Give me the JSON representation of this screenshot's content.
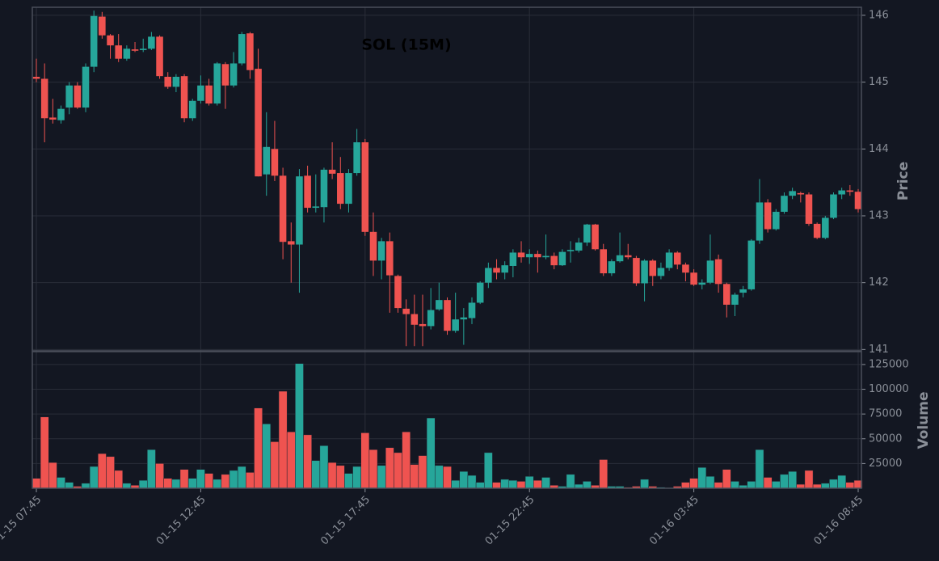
{
  "chart_data": {
    "type": "candlestick",
    "title": "SOL (15M)",
    "categories": [
      "01-15 07:45",
      null,
      null,
      null,
      null,
      null,
      null,
      null,
      null,
      null,
      null,
      null,
      null,
      null,
      null,
      null,
      null,
      null,
      null,
      null,
      "01-15 12:45",
      null,
      null,
      null,
      null,
      null,
      null,
      null,
      null,
      null,
      null,
      null,
      null,
      null,
      null,
      null,
      null,
      null,
      null,
      null,
      "01-15 17:45",
      null,
      null,
      null,
      null,
      null,
      null,
      null,
      null,
      null,
      null,
      null,
      null,
      null,
      null,
      null,
      null,
      null,
      null,
      null,
      "01-15 22:45",
      null,
      null,
      null,
      null,
      null,
      null,
      null,
      null,
      null,
      null,
      null,
      null,
      null,
      null,
      null,
      null,
      null,
      null,
      null,
      "01-16 03:45",
      null,
      null,
      null,
      null,
      null,
      null,
      null,
      null,
      null,
      null,
      null,
      null,
      null,
      null,
      null,
      null,
      null,
      null,
      null,
      "01-16 08:45"
    ],
    "open": [
      145.08,
      145.05,
      144.47,
      144.43,
      144.62,
      144.95,
      144.62,
      145.23,
      145.98,
      145.7,
      145.55,
      145.35,
      145.49,
      145.48,
      145.5,
      145.68,
      145.08,
      144.93,
      145.09,
      144.46,
      144.72,
      144.95,
      144.68,
      145.27,
      144.95,
      145.28,
      145.73,
      145.2,
      143.62,
      144.0,
      143.6,
      142.62,
      142.57,
      143.6,
      143.12,
      143.13,
      143.69,
      143.64,
      143.18,
      143.64,
      144.1,
      142.76,
      142.33,
      142.62,
      142.1,
      141.61,
      141.53,
      141.38,
      141.35,
      141.6,
      141.74,
      141.28,
      141.45,
      141.47,
      141.7,
      142.0,
      142.22,
      142.15,
      142.25,
      142.45,
      142.38,
      142.43,
      142.38,
      142.4,
      142.26,
      142.47,
      142.48,
      142.6,
      142.87,
      142.5,
      142.14,
      142.32,
      142.41,
      142.37,
      141.99,
      142.33,
      142.1,
      142.22,
      142.45,
      142.27,
      142.15,
      141.97,
      142.0,
      142.35,
      141.98,
      141.67,
      141.85,
      141.9,
      142.63,
      143.2,
      142.8,
      143.06,
      143.3,
      143.34,
      143.32,
      142.88,
      142.67,
      142.97,
      143.32,
      143.38,
      143.36
    ],
    "high": [
      145.35,
      145.28,
      144.75,
      144.65,
      145.0,
      145.0,
      145.28,
      146.07,
      146.05,
      145.72,
      145.72,
      145.55,
      145.6,
      145.65,
      145.75,
      145.7,
      145.15,
      145.12,
      145.12,
      144.75,
      145.1,
      145.05,
      145.3,
      145.3,
      145.45,
      145.75,
      145.75,
      145.5,
      144.55,
      144.42,
      143.72,
      142.9,
      143.7,
      143.75,
      143.62,
      143.72,
      144.1,
      143.88,
      143.7,
      144.3,
      144.15,
      143.05,
      142.67,
      142.75,
      142.12,
      141.75,
      141.82,
      141.82,
      141.92,
      142.0,
      141.78,
      141.85,
      141.62,
      141.78,
      142.02,
      142.3,
      142.35,
      142.32,
      142.5,
      142.62,
      142.5,
      142.48,
      142.72,
      142.45,
      142.5,
      142.62,
      142.67,
      142.88,
      142.88,
      142.58,
      142.35,
      142.75,
      142.58,
      142.4,
      142.35,
      142.35,
      142.3,
      142.5,
      142.47,
      142.3,
      142.2,
      142.05,
      142.72,
      142.42,
      142.0,
      141.85,
      141.95,
      142.65,
      143.55,
      143.25,
      143.1,
      143.35,
      143.42,
      143.36,
      143.35,
      142.9,
      143.0,
      143.35,
      143.42,
      143.46,
      143.4
    ],
    "low": [
      145.0,
      144.1,
      144.38,
      144.38,
      144.52,
      144.6,
      144.55,
      145.15,
      145.65,
      145.35,
      145.3,
      145.32,
      145.45,
      145.45,
      145.48,
      145.05,
      144.9,
      144.85,
      144.4,
      144.42,
      144.68,
      144.65,
      144.65,
      144.6,
      144.92,
      145.25,
      145.05,
      143.59,
      143.3,
      143.52,
      142.35,
      142.0,
      141.85,
      143.05,
      143.05,
      142.9,
      143.55,
      143.1,
      143.05,
      143.6,
      142.7,
      142.1,
      142.05,
      141.55,
      141.55,
      141.05,
      141.05,
      141.05,
      141.3,
      141.58,
      141.22,
      141.25,
      141.07,
      141.38,
      141.68,
      141.92,
      142.05,
      142.05,
      142.08,
      142.3,
      142.28,
      142.15,
      142.35,
      142.2,
      142.25,
      142.3,
      142.45,
      142.55,
      142.48,
      142.1,
      142.1,
      142.3,
      142.35,
      141.95,
      141.72,
      141.95,
      142.05,
      142.18,
      142.2,
      142.02,
      141.95,
      141.9,
      141.98,
      141.85,
      141.48,
      141.5,
      141.78,
      141.88,
      142.58,
      142.75,
      142.78,
      143.03,
      143.25,
      143.2,
      142.85,
      142.65,
      142.65,
      142.95,
      143.25,
      143.3,
      143.05
    ],
    "close": [
      145.05,
      144.46,
      144.44,
      144.6,
      144.95,
      144.62,
      145.23,
      145.99,
      145.7,
      145.55,
      145.35,
      145.5,
      145.47,
      145.5,
      145.68,
      145.09,
      144.93,
      145.08,
      144.46,
      144.72,
      144.95,
      144.68,
      145.28,
      144.95,
      145.28,
      145.72,
      145.18,
      143.59,
      144.03,
      143.6,
      142.61,
      142.57,
      143.59,
      143.12,
      143.14,
      143.69,
      143.63,
      143.18,
      143.64,
      144.1,
      142.76,
      142.33,
      142.62,
      142.11,
      141.62,
      141.53,
      141.37,
      141.35,
      141.59,
      141.74,
      141.28,
      141.45,
      141.48,
      141.7,
      142.0,
      142.22,
      142.15,
      142.26,
      142.45,
      142.38,
      142.43,
      142.38,
      142.4,
      142.26,
      142.46,
      142.49,
      142.6,
      142.87,
      142.5,
      142.14,
      142.32,
      142.41,
      142.38,
      141.99,
      142.33,
      142.1,
      142.22,
      142.45,
      142.27,
      142.15,
      141.97,
      142.0,
      142.33,
      141.98,
      141.67,
      141.82,
      141.9,
      142.63,
      143.2,
      142.8,
      143.06,
      143.3,
      143.37,
      143.32,
      142.88,
      142.67,
      142.97,
      143.32,
      143.38,
      143.36,
      143.1
    ],
    "volume": [
      10000,
      72000,
      26000,
      11000,
      6000,
      2000,
      5000,
      22000,
      35000,
      32000,
      18000,
      5000,
      3000,
      8000,
      39000,
      25000,
      10000,
      9000,
      19000,
      10000,
      19000,
      15000,
      9000,
      14000,
      18000,
      22000,
      16000,
      81000,
      65000,
      47000,
      98000,
      57000,
      126000,
      54000,
      28000,
      43000,
      26000,
      23000,
      15000,
      22000,
      56000,
      39000,
      23000,
      41000,
      36000,
      57000,
      24000,
      33000,
      71000,
      23000,
      22000,
      8000,
      17000,
      13000,
      6000,
      36000,
      6000,
      9000,
      8000,
      7000,
      12000,
      8000,
      11000,
      3000,
      2000,
      14000,
      4000,
      7000,
      3000,
      29000,
      2000,
      2000,
      1000,
      2000,
      9000,
      2000,
      1000,
      500,
      2000,
      6000,
      10000,
      21000,
      12000,
      6000,
      19000,
      7000,
      3000,
      7000,
      39000,
      11000,
      7000,
      14000,
      17000,
      4000,
      18000,
      4000,
      5000,
      9000,
      13000,
      6000,
      8000
    ],
    "up_color": "#26a69a",
    "down_color": "#ef5350",
    "ylabel": "Price",
    "ylim": [
      140.98,
      146.12
    ],
    "yticks": [
      141,
      142,
      143,
      144,
      145,
      146
    ],
    "volume_ylabel": "Volume",
    "volume_ylim": [
      0,
      138000
    ],
    "volume_yticks": [
      25000,
      50000,
      75000,
      100000,
      125000
    ],
    "grid": true
  }
}
